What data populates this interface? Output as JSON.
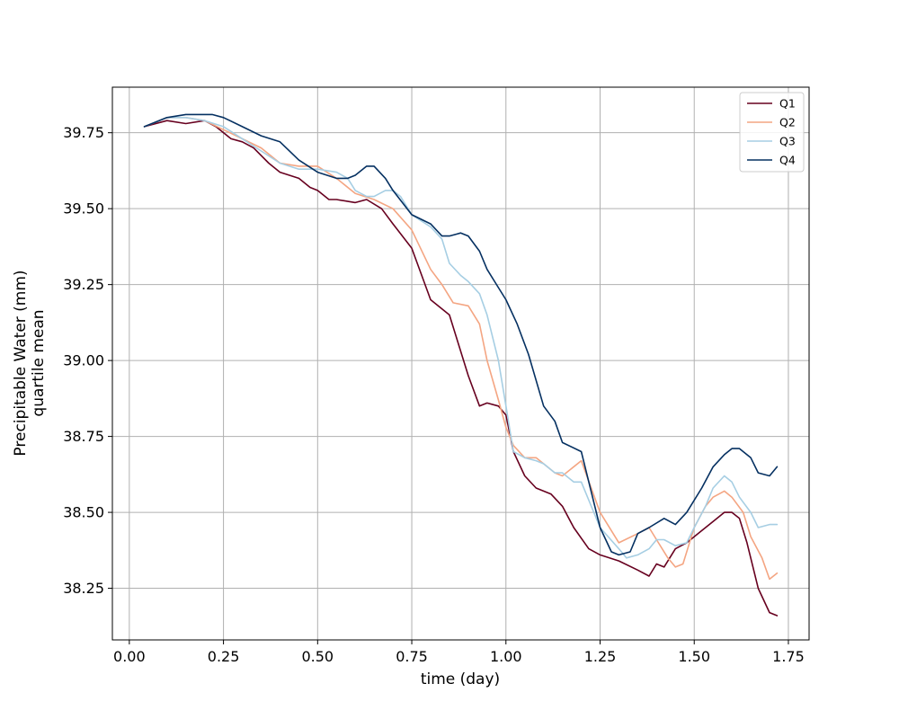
{
  "chart_data": {
    "type": "line",
    "title": "",
    "xlabel": "time (day)",
    "ylabel_lines": [
      "Precipitable Water (mm)",
      "quartile mean"
    ],
    "xlim": [
      -0.045,
      1.805
    ],
    "ylim": [
      38.08,
      39.9
    ],
    "xticks": [
      0.0,
      0.25,
      0.5,
      0.75,
      1.0,
      1.25,
      1.5,
      1.75
    ],
    "xtick_labels": [
      "0.00",
      "0.25",
      "0.50",
      "0.75",
      "1.00",
      "1.25",
      "1.50",
      "1.75"
    ],
    "yticks": [
      38.25,
      38.5,
      38.75,
      39.0,
      39.25,
      39.5,
      39.75
    ],
    "ytick_labels": [
      "38.25",
      "38.50",
      "38.75",
      "39.00",
      "39.25",
      "39.50",
      "39.75"
    ],
    "grid": true,
    "legend_position": "top-right",
    "series": [
      {
        "name": "Q1",
        "color": "#67001f",
        "x": [
          0.04,
          0.1,
          0.15,
          0.2,
          0.23,
          0.27,
          0.3,
          0.33,
          0.37,
          0.4,
          0.45,
          0.48,
          0.5,
          0.53,
          0.55,
          0.6,
          0.63,
          0.67,
          0.7,
          0.75,
          0.8,
          0.85,
          0.9,
          0.93,
          0.95,
          0.98,
          1.0,
          1.02,
          1.05,
          1.08,
          1.12,
          1.15,
          1.18,
          1.22,
          1.25,
          1.3,
          1.35,
          1.38,
          1.4,
          1.42,
          1.45,
          1.48,
          1.52,
          1.55,
          1.58,
          1.6,
          1.62,
          1.64,
          1.67,
          1.7,
          1.72
        ],
        "y": [
          39.77,
          39.79,
          39.78,
          39.79,
          39.77,
          39.73,
          39.72,
          39.7,
          39.65,
          39.62,
          39.6,
          39.57,
          39.56,
          39.53,
          39.53,
          39.52,
          39.53,
          39.5,
          39.45,
          39.37,
          39.2,
          39.15,
          38.95,
          38.85,
          38.86,
          38.85,
          38.82,
          38.7,
          38.62,
          38.58,
          38.56,
          38.52,
          38.45,
          38.38,
          38.36,
          38.34,
          38.31,
          38.29,
          38.33,
          38.32,
          38.38,
          38.4,
          38.44,
          38.47,
          38.5,
          38.5,
          38.48,
          38.4,
          38.25,
          38.17,
          38.16
        ]
      },
      {
        "name": "Q2",
        "color": "#f4a582",
        "x": [
          0.04,
          0.1,
          0.15,
          0.2,
          0.25,
          0.3,
          0.35,
          0.4,
          0.45,
          0.5,
          0.55,
          0.6,
          0.65,
          0.7,
          0.75,
          0.8,
          0.83,
          0.86,
          0.9,
          0.93,
          0.95,
          0.98,
          1.0,
          1.02,
          1.05,
          1.08,
          1.11,
          1.13,
          1.15,
          1.2,
          1.25,
          1.3,
          1.35,
          1.38,
          1.4,
          1.43,
          1.45,
          1.47,
          1.5,
          1.53,
          1.55,
          1.58,
          1.6,
          1.63,
          1.65,
          1.68,
          1.7,
          1.72
        ],
        "y": [
          39.77,
          39.8,
          39.8,
          39.79,
          39.76,
          39.73,
          39.7,
          39.65,
          39.64,
          39.64,
          39.6,
          39.55,
          39.53,
          39.5,
          39.43,
          39.3,
          39.25,
          39.19,
          39.18,
          39.12,
          39.0,
          38.87,
          38.78,
          38.72,
          38.68,
          38.68,
          38.65,
          38.63,
          38.62,
          38.67,
          38.5,
          38.4,
          38.43,
          38.45,
          38.41,
          38.35,
          38.32,
          38.33,
          38.45,
          38.52,
          38.55,
          38.57,
          38.55,
          38.5,
          38.42,
          38.35,
          38.28,
          38.3
        ]
      },
      {
        "name": "Q3",
        "color": "#a6cee3",
        "x": [
          0.04,
          0.1,
          0.15,
          0.2,
          0.25,
          0.3,
          0.35,
          0.4,
          0.45,
          0.5,
          0.55,
          0.58,
          0.6,
          0.63,
          0.65,
          0.68,
          0.7,
          0.72,
          0.75,
          0.8,
          0.83,
          0.85,
          0.88,
          0.9,
          0.93,
          0.95,
          0.98,
          1.0,
          1.02,
          1.05,
          1.08,
          1.1,
          1.13,
          1.15,
          1.18,
          1.2,
          1.25,
          1.3,
          1.32,
          1.35,
          1.38,
          1.4,
          1.42,
          1.45,
          1.48,
          1.5,
          1.53,
          1.55,
          1.58,
          1.6,
          1.62,
          1.65,
          1.67,
          1.7,
          1.72
        ],
        "y": [
          39.77,
          39.8,
          39.8,
          39.79,
          39.77,
          39.73,
          39.69,
          39.65,
          39.63,
          39.63,
          39.62,
          39.6,
          39.56,
          39.54,
          39.54,
          39.56,
          39.56,
          39.54,
          39.48,
          39.44,
          39.4,
          39.32,
          39.28,
          39.26,
          39.22,
          39.15,
          39.0,
          38.85,
          38.7,
          38.68,
          38.67,
          38.66,
          38.63,
          38.63,
          38.6,
          38.6,
          38.45,
          38.38,
          38.35,
          38.36,
          38.38,
          38.41,
          38.41,
          38.39,
          38.4,
          38.45,
          38.52,
          38.58,
          38.62,
          38.6,
          38.55,
          38.5,
          38.45,
          38.46,
          38.46
        ]
      },
      {
        "name": "Q4",
        "color": "#053061",
        "x": [
          0.04,
          0.1,
          0.15,
          0.2,
          0.22,
          0.25,
          0.3,
          0.35,
          0.4,
          0.45,
          0.5,
          0.55,
          0.58,
          0.6,
          0.63,
          0.65,
          0.68,
          0.7,
          0.75,
          0.8,
          0.83,
          0.85,
          0.88,
          0.9,
          0.93,
          0.95,
          0.98,
          1.0,
          1.03,
          1.06,
          1.1,
          1.13,
          1.15,
          1.2,
          1.25,
          1.28,
          1.3,
          1.33,
          1.35,
          1.38,
          1.42,
          1.45,
          1.48,
          1.52,
          1.55,
          1.58,
          1.6,
          1.62,
          1.65,
          1.67,
          1.7,
          1.72
        ],
        "y": [
          39.77,
          39.8,
          39.81,
          39.81,
          39.81,
          39.8,
          39.77,
          39.74,
          39.72,
          39.66,
          39.62,
          39.6,
          39.6,
          39.61,
          39.64,
          39.64,
          39.6,
          39.56,
          39.48,
          39.45,
          39.41,
          39.41,
          39.42,
          39.41,
          39.36,
          39.3,
          39.24,
          39.2,
          39.12,
          39.02,
          38.85,
          38.8,
          38.73,
          38.7,
          38.45,
          38.37,
          38.36,
          38.37,
          38.43,
          38.45,
          38.48,
          38.46,
          38.5,
          38.58,
          38.65,
          38.69,
          38.71,
          38.71,
          38.68,
          38.63,
          38.62,
          38.65
        ]
      }
    ]
  }
}
